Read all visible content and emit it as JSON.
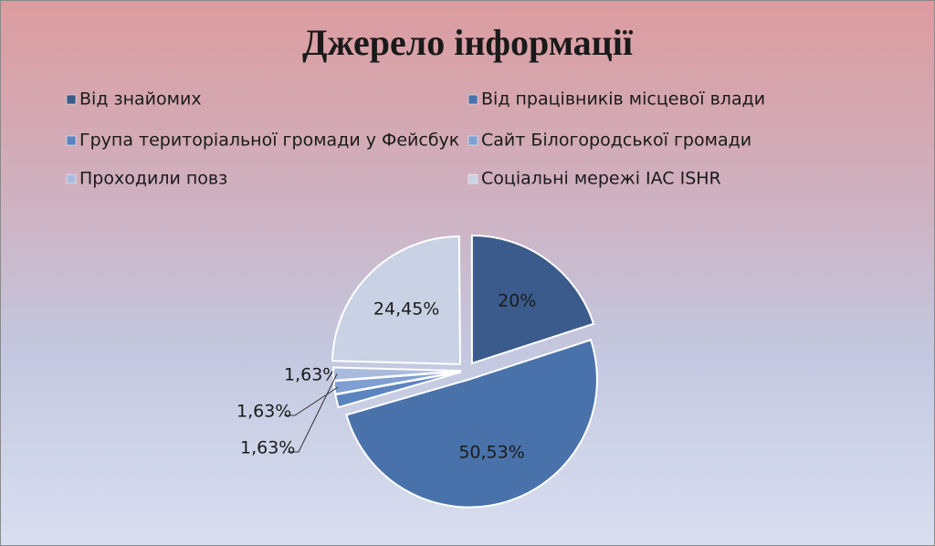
{
  "chart_data": {
    "type": "pie",
    "title": "Джерело інформації",
    "categories": [
      "Від знайомих",
      "Від працівників місцевої влади",
      "Група територіальної громади у Фейсбук",
      "Сайт Білогородської громади",
      "Проходили повз",
      "Соціальні мережі IAC ISHR"
    ],
    "values": [
      20,
      50.53,
      1.63,
      1.63,
      1.63,
      24.45
    ],
    "value_labels": [
      "20%",
      "50,53%",
      "1,63%",
      "1,63%",
      "1,63%",
      "24,45%"
    ],
    "colors": [
      "#3b5b8c",
      "#4a72aa",
      "#5b83c0",
      "#7f9fd2",
      "#a9bbdd",
      "#c9d2e4"
    ],
    "legend": "top"
  }
}
